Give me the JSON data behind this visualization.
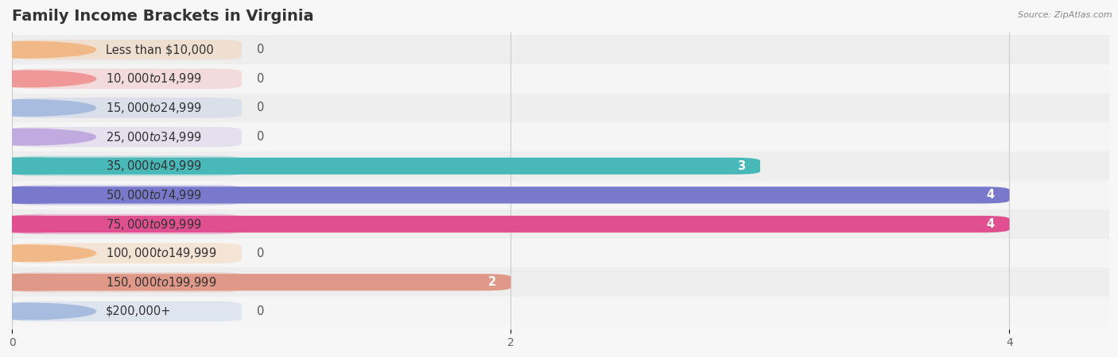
{
  "title": "Family Income Brackets in Virginia",
  "source": "Source: ZipAtlas.com",
  "categories": [
    "Less than $10,000",
    "$10,000 to $14,999",
    "$15,000 to $24,999",
    "$25,000 to $34,999",
    "$35,000 to $49,999",
    "$50,000 to $74,999",
    "$75,000 to $99,999",
    "$100,000 to $149,999",
    "$150,000 to $199,999",
    "$200,000+"
  ],
  "values": [
    0,
    0,
    0,
    0,
    3,
    4,
    4,
    0,
    2,
    0
  ],
  "bar_colors": [
    "#f2b988",
    "#f09898",
    "#a8bcdf",
    "#c0aadf",
    "#48b8b8",
    "#7878cc",
    "#e05090",
    "#f2b988",
    "#e09888",
    "#a8bcdf"
  ],
  "background_color": "#f7f7f7",
  "row_colors": [
    "#eeeeee",
    "#f5f5f5"
  ],
  "xlim": [
    0,
    4.4
  ],
  "xticks": [
    0,
    2,
    4
  ],
  "title_fontsize": 14,
  "value_fontsize": 10.5,
  "label_fontsize": 10.5,
  "bar_height": 0.58,
  "bg_bar_height": 0.7,
  "bg_bar_alpha": 0.28,
  "max_val": 4
}
